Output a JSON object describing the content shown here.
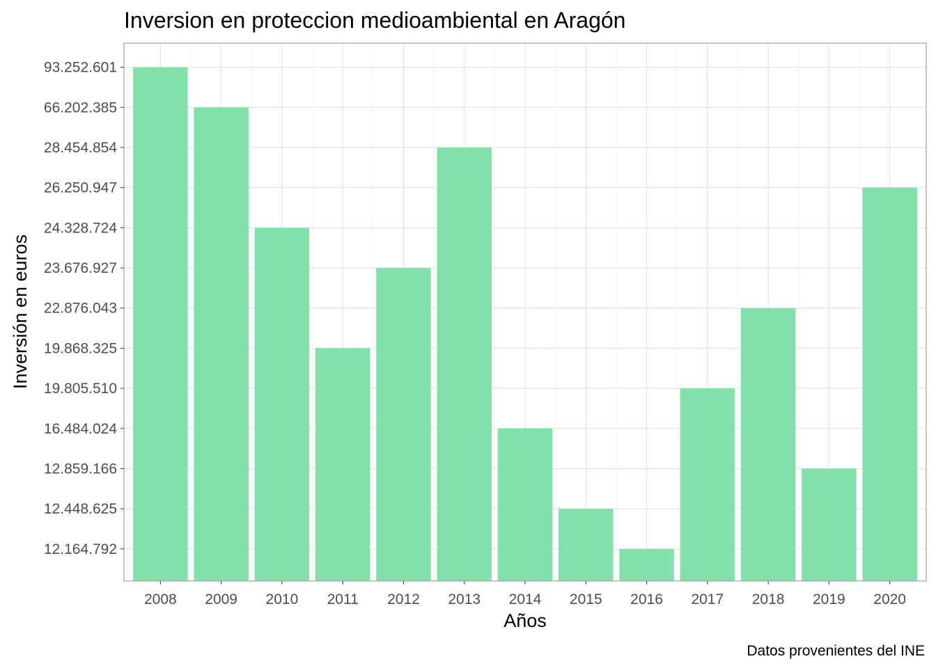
{
  "chart_data": {
    "type": "bar",
    "title": "Inversion en proteccion medioambiental en Aragón",
    "xlabel": "Años",
    "ylabel": "Inversión en euros",
    "caption": "Datos provenientes del INE",
    "categories": [
      "2008",
      "2009",
      "2010",
      "2011",
      "2012",
      "2013",
      "2014",
      "2015",
      "2016",
      "2017",
      "2018",
      "2019",
      "2020"
    ],
    "values": [
      93252601,
      66202385,
      24328724,
      19868325,
      23676927,
      28454854,
      16484024,
      12448625,
      12164792,
      19805510,
      22876043,
      12859166,
      26250947
    ],
    "value_labels": [
      "93.252.601",
      "66.202.385",
      "24.328.724",
      "19.868.325",
      "23.676.927",
      "28.454.854",
      "16.484.024",
      "12.448.625",
      "12.164.792",
      "19.805.510",
      "22.876.043",
      "12.859.166",
      "26.250.947"
    ],
    "y_axis_scale": "ordinal (sorted distinct values)",
    "y_tick_labels": [
      "12.164.792",
      "12.448.625",
      "12.859.166",
      "16.484.024",
      "19.805.510",
      "19.868.325",
      "22.876.043",
      "23.676.927",
      "24.328.724",
      "26.250.947",
      "28.454.854",
      "66.202.385",
      "93.252.601"
    ],
    "bar_color": "#82E0AA",
    "grid": true,
    "legend": "none"
  }
}
